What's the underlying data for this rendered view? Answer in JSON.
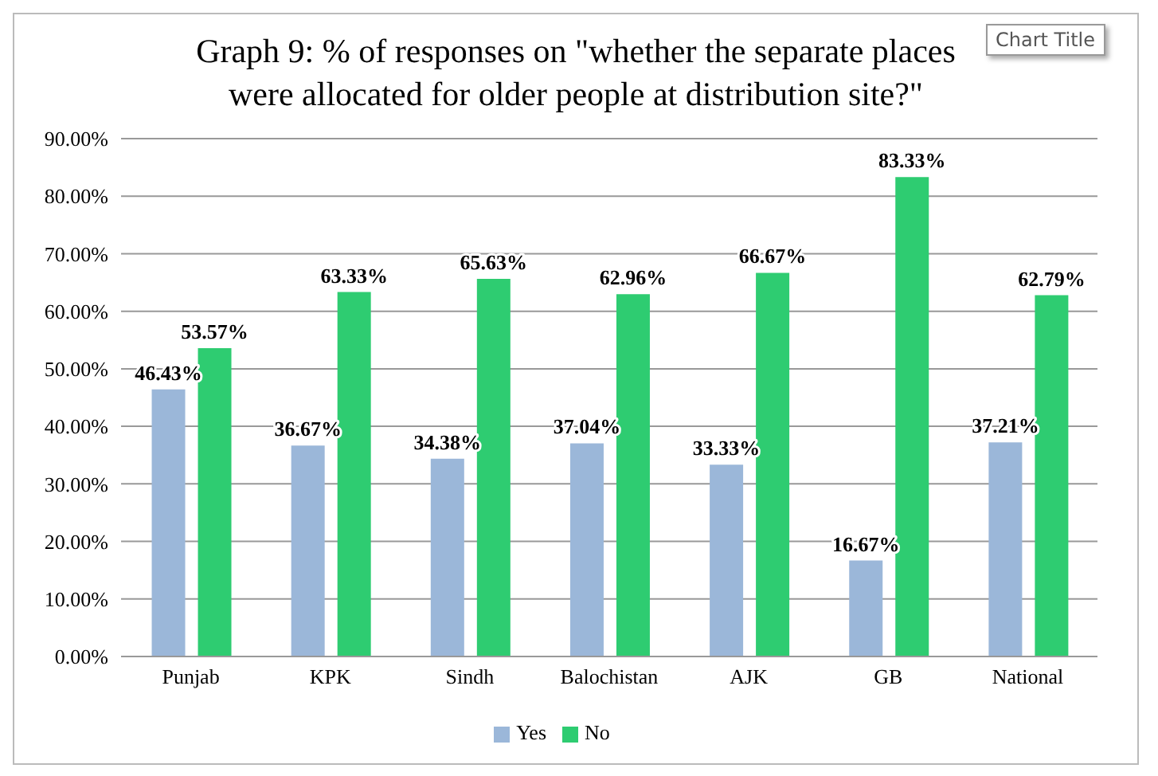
{
  "chart_data": {
    "type": "bar",
    "title": "Graph 9: % of responses on \"whether the separate places were allocated for older people at distribution site?\"",
    "annotations": [
      "Chart Title"
    ],
    "categories": [
      "Punjab",
      "KPK",
      "Sindh",
      "Balochistan",
      "AJK",
      "GB",
      "National"
    ],
    "series": [
      {
        "name": "Yes",
        "color": "#9bb7d9",
        "values": [
          46.43,
          36.67,
          34.38,
          37.04,
          33.33,
          16.67,
          37.21
        ],
        "value_labels": [
          "46.43%",
          "36.67%",
          "34.38%",
          "37.04%",
          "33.33%",
          "16.67%",
          "37.21%"
        ]
      },
      {
        "name": "No",
        "color": "#2ecc71",
        "values": [
          53.57,
          63.33,
          65.63,
          62.96,
          66.67,
          83.33,
          62.79
        ],
        "value_labels": [
          "53.57%",
          "63.33%",
          "65.63%",
          "62.96%",
          "66.67%",
          "83.33%",
          "62.79%"
        ]
      }
    ],
    "ylim": [
      0,
      90
    ],
    "yticks": [
      {
        "value": 0,
        "label": "0.00%"
      },
      {
        "value": 10,
        "label": "10.00%"
      },
      {
        "value": 20,
        "label": "20.00%"
      },
      {
        "value": 30,
        "label": "30.00%"
      },
      {
        "value": 40,
        "label": "40.00%"
      },
      {
        "value": 50,
        "label": "50.00%"
      },
      {
        "value": 60,
        "label": "60.00%"
      },
      {
        "value": 70,
        "label": "70.00%"
      },
      {
        "value": 80,
        "label": "80.00%"
      },
      {
        "value": 90,
        "label": "90.00%"
      }
    ],
    "grid": "y",
    "legend": "bottom"
  }
}
